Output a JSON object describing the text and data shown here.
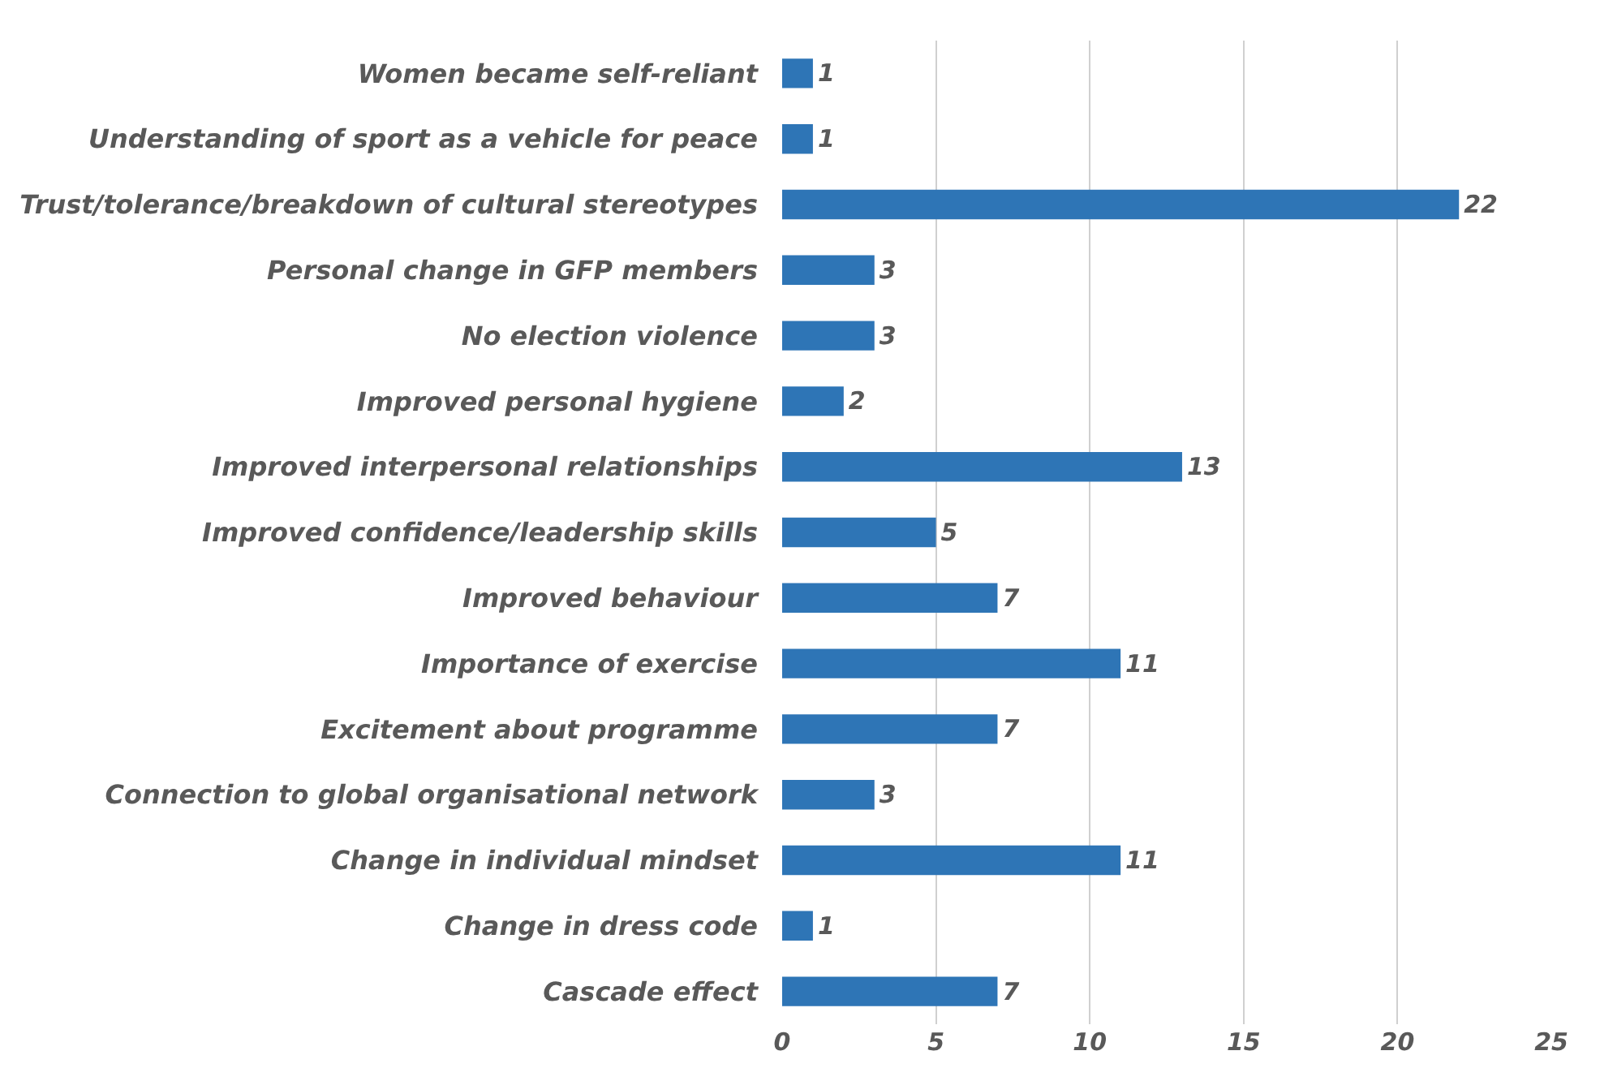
{
  "chart_data": {
    "type": "bar",
    "orientation": "horizontal",
    "categories": [
      "Women became self-reliant",
      "Understanding of sport as a vehicle for peace",
      "Trust/tolerance/breakdown of cultural stereotypes",
      "Personal change in GFP members",
      "No election violence",
      "Improved personal hygiene",
      "Improved interpersonal relationships",
      "Improved confidence/leadership skills",
      "Improved behaviour",
      "Importance of exercise",
      "Excitement about programme",
      "Connection to global organisational network",
      "Change in individual mindset",
      "Change in dress code",
      "Cascade effect"
    ],
    "values": [
      1,
      1,
      22,
      3,
      3,
      2,
      13,
      5,
      7,
      11,
      7,
      3,
      11,
      1,
      7
    ],
    "color": "#2e75b6",
    "xlim": [
      0,
      25
    ],
    "xticks": [
      0,
      5,
      10,
      15,
      20,
      25
    ],
    "grid": "x",
    "data_labels": true
  }
}
